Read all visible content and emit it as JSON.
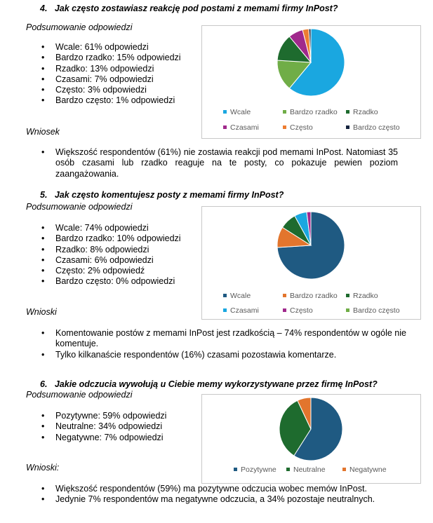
{
  "sections": [
    {
      "title": "4.   Jak często zostawiasz reakcję pod postami z memami firmy InPost?",
      "summary_heading": "Podsumowanie odpowiedzi",
      "answers": [
        "Wcale: 61% odpowiedzi",
        "Bardzo rzadko: 15% odpowiedzi",
        "Rzadko: 13% odpowiedzi",
        "Czasami: 7% odpowiedzi",
        "Często: 3% odpowiedzi",
        "Bardzo często: 1% odpowiedzi"
      ],
      "conclusion_heading": "Wniosek",
      "conclusions": [
        "Większość respondentów (61%) nie zostawia reakcji pod memami InPost. Natomiast 35 osób czasami lub rzadko reaguje na te posty, co pokazuje pewien poziom zaangażowania."
      ]
    },
    {
      "title": "5.   Jak często komentujesz posty z memami firmy InPost?",
      "summary_heading": "Podsumowanie odpowiedzi",
      "answers": [
        "Wcale: 74% odpowiedzi",
        "Bardzo rzadko: 10% odpowiedzi",
        "Rzadko: 8% odpowiedzi",
        "Czasami: 6% odpowiedzi",
        "Często: 2% odpowiedź",
        "Bardzo często: 0% odpowiedzi"
      ],
      "conclusion_heading": "Wnioski",
      "conclusions": [
        "Komentowanie postów z memami InPost jest rzadkością – 74% respondentów w ogóle nie komentuje.",
        "Tylko kilkanaście respondentów (16%) czasami pozostawia komentarze."
      ]
    },
    {
      "title": "6.   Jakie odczucia wywołują u Ciebie memy wykorzystywane przez firmę InPost?",
      "summary_heading": "Podsumowanie odpowiedzi",
      "answers": [
        "Pozytywne: 59% odpowiedzi",
        "Neutralne: 34% odpowiedzi",
        "Negatywne: 7% odpowiedzi"
      ],
      "conclusion_heading": "Wnioski:",
      "conclusions": [
        "Większość respondentów (59%) ma pozytywne odczucia wobec memów InPost.",
        "Jedynie 7% respondentów ma negatywne odczucia, a 34% pozostaje neutralnych."
      ]
    }
  ],
  "chart_data": [
    {
      "type": "pie",
      "categories": [
        "Wcale",
        "Bardzo rzadko",
        "Rzadko",
        "Czasami",
        "Często",
        "Bardzo często"
      ],
      "values": [
        61,
        15,
        13,
        7,
        3,
        1
      ],
      "colors": [
        "#1aa7e0",
        "#70ad47",
        "#1e6b2e",
        "#a0298c",
        "#ed7d31",
        "#15243f"
      ],
      "legend_position": "bottom"
    },
    {
      "type": "pie",
      "categories": [
        "Wcale",
        "Bardzo rzadko",
        "Rzadko",
        "Czasami",
        "Często",
        "Bardzo często"
      ],
      "values": [
        74,
        10,
        8,
        6,
        2,
        0
      ],
      "colors": [
        "#1f5a82",
        "#e2752d",
        "#1e6b2e",
        "#1aa7e0",
        "#a0298c",
        "#70ad47"
      ],
      "legend_position": "bottom"
    },
    {
      "type": "pie",
      "categories": [
        "Pozytywne",
        "Neutralne",
        "Negatywne"
      ],
      "values": [
        59,
        34,
        7
      ],
      "colors": [
        "#1f5a82",
        "#1e6b2e",
        "#e2752d"
      ],
      "legend_position": "bottom"
    }
  ]
}
